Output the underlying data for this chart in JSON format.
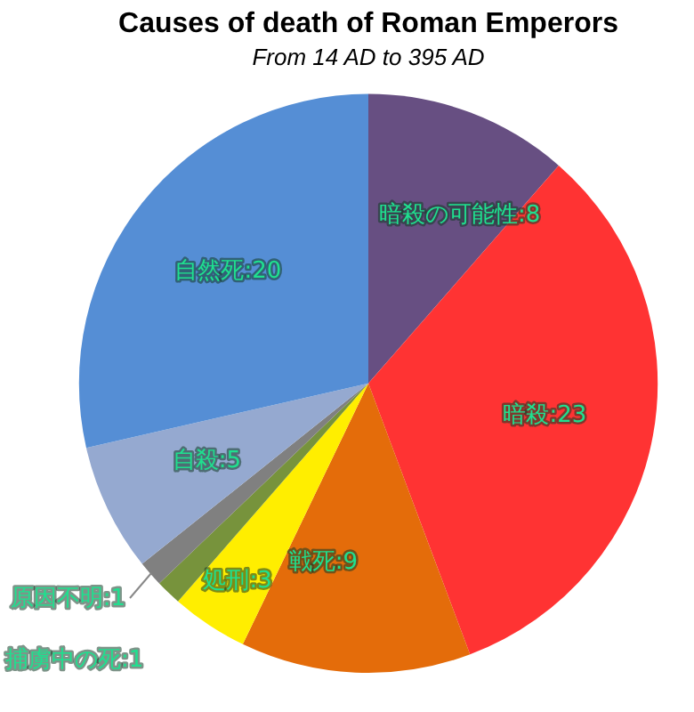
{
  "chart_data": {
    "type": "pie",
    "title": "Causes of death of Roman Emperors",
    "subtitle": "From 14 AD to 395 AD",
    "categories": [
      "暗殺の可能性",
      "暗殺",
      "戦死",
      "処刑",
      "捕虜中の死",
      "原因不明",
      "自殺",
      "自然死"
    ],
    "values": [
      8,
      23,
      9,
      3,
      1,
      1,
      5,
      20
    ],
    "colors": [
      "#674f82",
      "#ff3333",
      "#e46c0a",
      "#ffee00",
      "#77933c",
      "#808080",
      "#95a9d0",
      "#558ed5"
    ],
    "value_labels": [
      ":8",
      ":23",
      ":9",
      ":3",
      ":1",
      ":1",
      ":5",
      ":20"
    ],
    "legend": false
  }
}
